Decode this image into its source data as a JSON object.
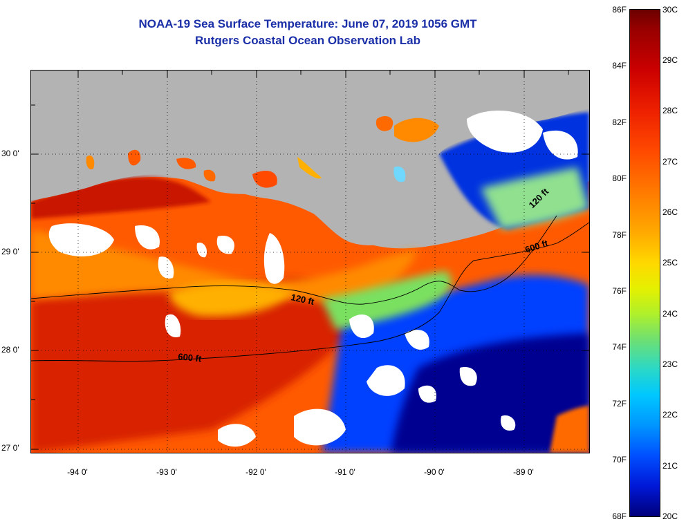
{
  "header": {
    "title": "NOAA-19 Sea Surface Temperature:  June 07, 2019 1056 GMT",
    "subtitle": "Rutgers Coastal Ocean Observation Lab"
  },
  "map": {
    "x_labels": [
      "-94 0'",
      "-93 0'",
      "-92 0'",
      "-91 0'",
      "-90 0'",
      "-89 0'"
    ],
    "y_labels": [
      "30 0'",
      "29 0'",
      "28 0'",
      "27 0'"
    ],
    "contour_labels": {
      "c120_west": "120 ft",
      "c600_west": "600 ft",
      "c600_east": "600 ft",
      "c120_east": "120 ft"
    },
    "colors": {
      "land": "#b3b3b3",
      "cloud": "#ffffff",
      "warm_core": "#d82000",
      "warm": "#ff5a00",
      "orange": "#ff8a00",
      "yellow": "#ffd800",
      "cool": "#0040ff",
      "cold": "#000090"
    }
  },
  "colorbar": {
    "fahrenheit_labels": [
      "86F",
      "84F",
      "82F",
      "80F",
      "78F",
      "76F",
      "74F",
      "72F",
      "70F",
      "68F"
    ],
    "celsius_labels": [
      "30C",
      "29C",
      "28C",
      "27C",
      "26C",
      "25C",
      "24C",
      "23C",
      "22C",
      "21C",
      "20C"
    ],
    "range_f": [
      68,
      86
    ],
    "range_c": [
      20,
      30
    ]
  }
}
